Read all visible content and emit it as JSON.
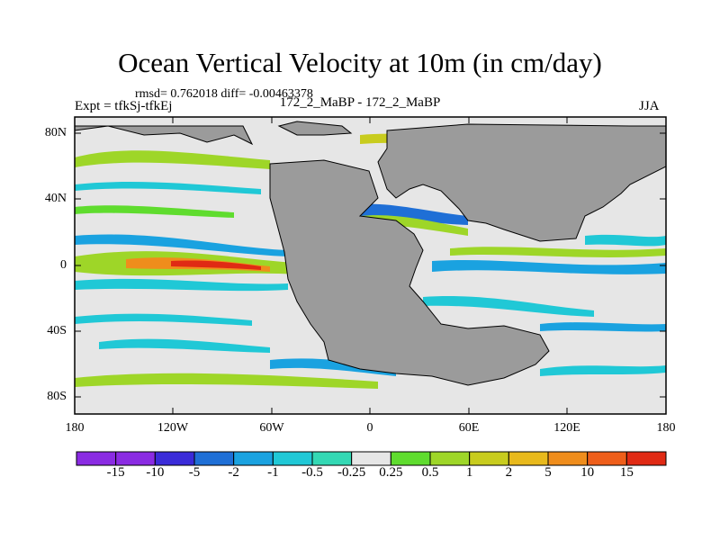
{
  "title": "Ocean Vertical Velocity at 10m (in cm/day)",
  "stats": "rmsd= 0.762018 diff= -0.00463378",
  "expt": "Expt = tfkSj-tfkEj",
  "runs": "172_2_MaBP - 172_2_MaBP",
  "season": "JJA",
  "lat_labels": [
    "80N",
    "40N",
    "0",
    "40S",
    "80S"
  ],
  "lon_labels": [
    "180",
    "120W",
    "60W",
    "0",
    "60E",
    "120E",
    "180"
  ],
  "colorbar": {
    "labels": [
      "-15",
      "-10",
      "-5",
      "-2",
      "-1",
      "-0.5",
      "-0.25",
      "0.25",
      "0.5",
      "1",
      "2",
      "5",
      "10",
      "15"
    ],
    "colors": [
      "#8a2be2",
      "#3a2bd8",
      "#1f6fd6",
      "#1aa2e0",
      "#20c8d6",
      "#33d8b4",
      "#e6e6e6",
      "#5fdc2e",
      "#9ed628",
      "#c8cc1e",
      "#e8b91c",
      "#ef8d1c",
      "#ee5e1a",
      "#e02a14"
    ]
  },
  "colors": {
    "land": "#9b9b9b",
    "neutral": "#e6e6e6"
  }
}
